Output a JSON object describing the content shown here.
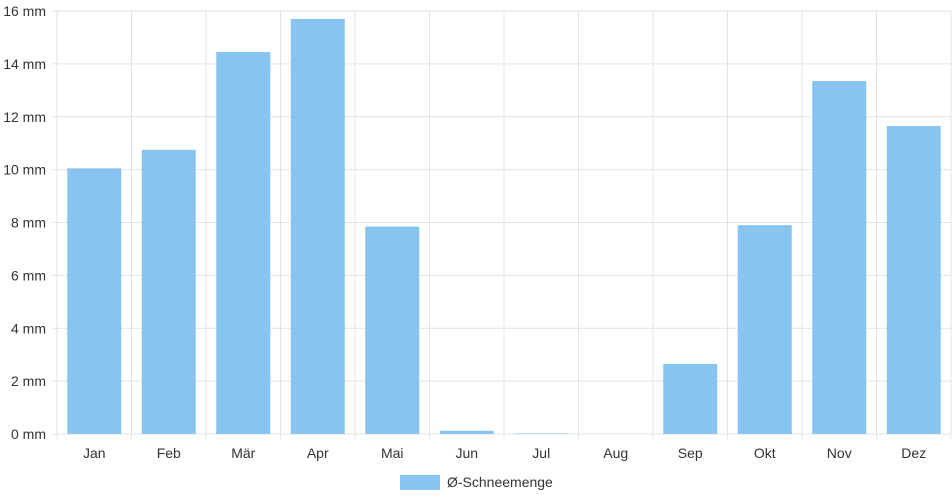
{
  "chart_data": {
    "type": "bar",
    "categories": [
      "Jan",
      "Feb",
      "Mär",
      "Apr",
      "Mai",
      "Jun",
      "Jul",
      "Aug",
      "Sep",
      "Okt",
      "Nov",
      "Dez"
    ],
    "series": [
      {
        "name": "Ø-Schneemenge",
        "values": [
          10.05,
          10.75,
          14.45,
          15.7,
          7.85,
          0.12,
          0.02,
          0.0,
          2.65,
          7.9,
          13.35,
          11.65
        ],
        "color": "#88c4f0"
      }
    ],
    "y_ticks": [
      "0 mm",
      "2 mm",
      "4 mm",
      "6 mm",
      "8 mm",
      "10 mm",
      "12 mm",
      "14 mm",
      "16 mm"
    ],
    "ylim": [
      0,
      16
    ],
    "grid": true,
    "legend_position": "bottom-center"
  }
}
